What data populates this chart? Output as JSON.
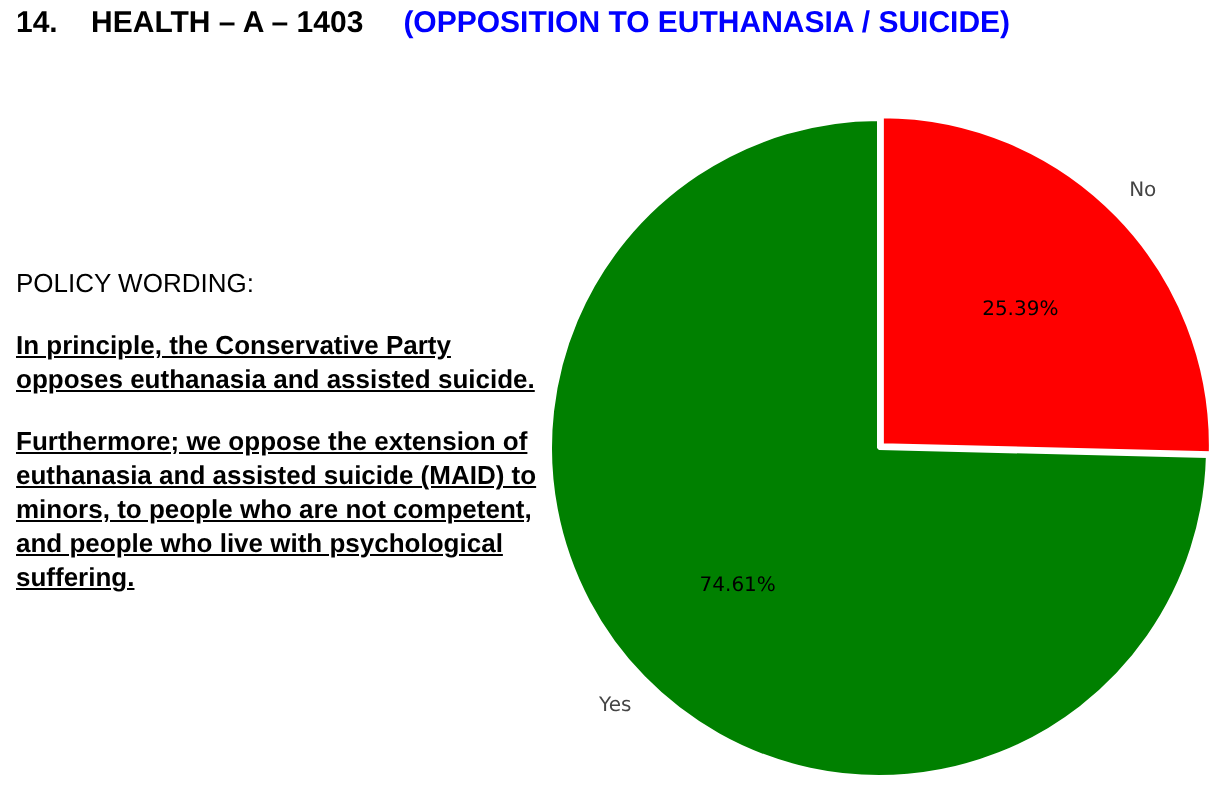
{
  "chart_data": {
    "type": "pie",
    "title": "14.    HEALTH – A – 1403",
    "subtitle": "(OPPOSITION TO EUTHANASIA / SUICIDE)",
    "categories": [
      "No",
      "Yes"
    ],
    "values": [
      25.39,
      74.61
    ],
    "colors": [
      "#ff0000",
      "#008000"
    ],
    "value_labels": [
      "25.39%",
      "74.61%"
    ],
    "annotations": [
      "POLICY WORDING:",
      "In principle, the Conservative Party opposes euthanasia and assisted suicide.",
      "Furthermore; we oppose the extension of euthanasia and assisted suicide (MAID) to minors, to people who are not competent, and people who live with psychological suffering."
    ]
  }
}
